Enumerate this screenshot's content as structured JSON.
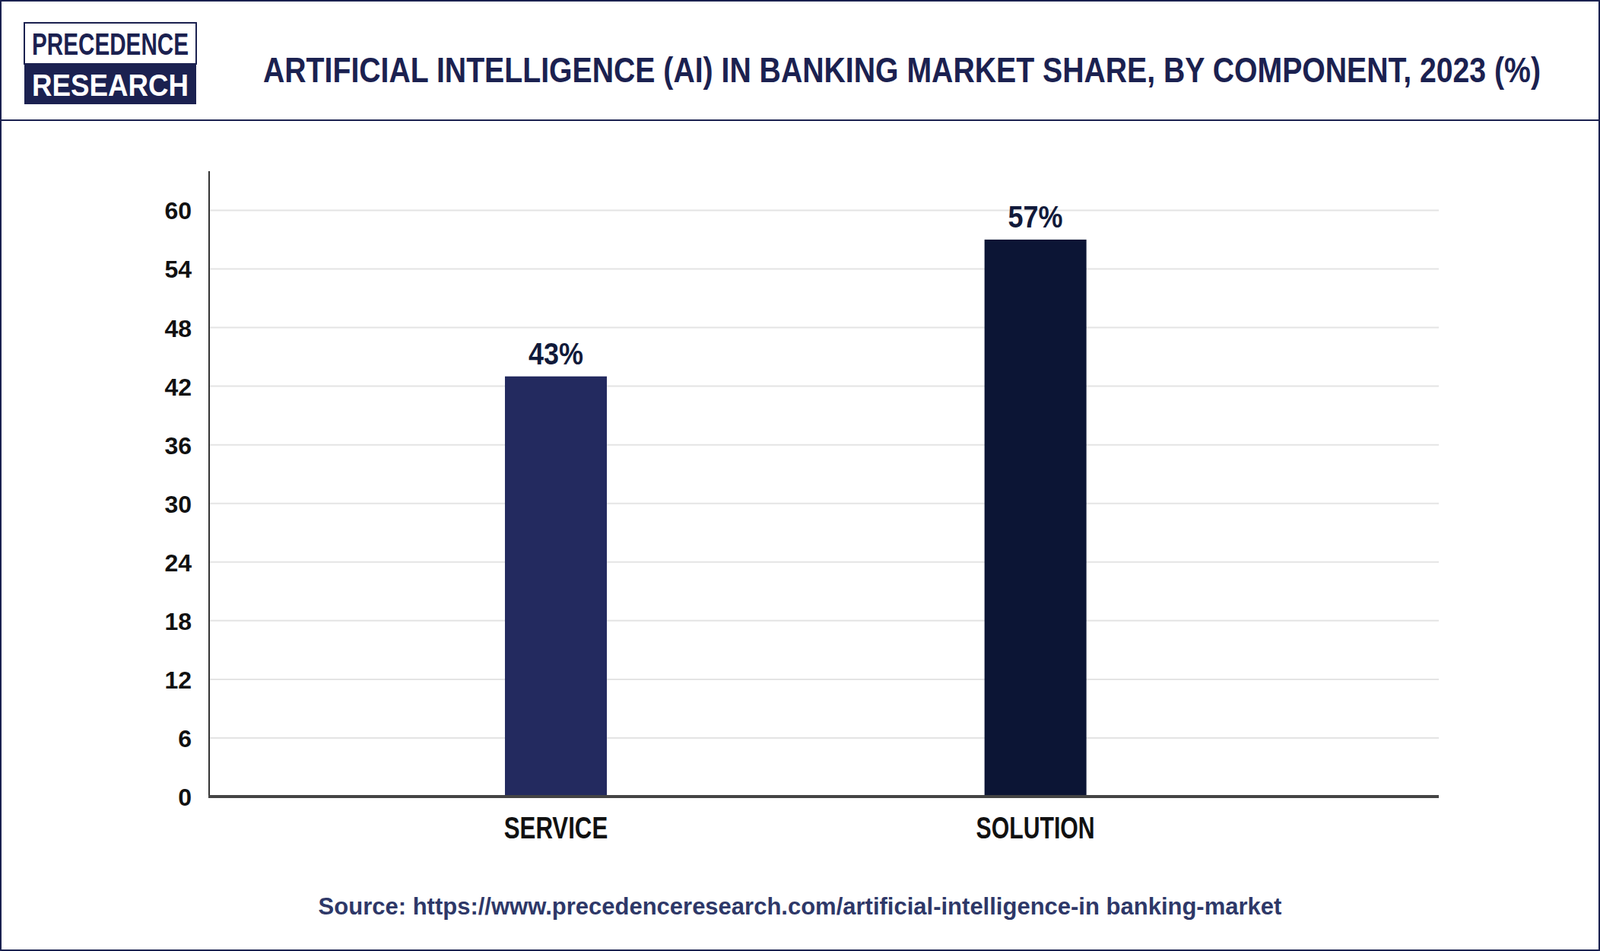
{
  "chart_data": {
    "type": "bar",
    "title": "ARTIFICIAL INTELLIGENCE (AI) IN BANKING MARKET SHARE, BY COMPONENT, 2023 (%)",
    "logo": [
      "PRECEDENCE",
      "RESEARCH"
    ],
    "source": "Source: https://www.precedenceresearch.com/artificial-intelligence-in banking-market",
    "categories": [
      "SERVICE",
      "SOLUTION"
    ],
    "values": [
      43,
      57
    ],
    "value_labels": [
      "43%",
      "57%"
    ],
    "colors": [
      "#232a5f",
      "#0c1535"
    ],
    "ylim": [
      0,
      64
    ],
    "yticks": [
      0,
      6,
      12,
      18,
      24,
      30,
      36,
      42,
      48,
      54,
      60
    ],
    "grid": true,
    "data_labels": true
  }
}
